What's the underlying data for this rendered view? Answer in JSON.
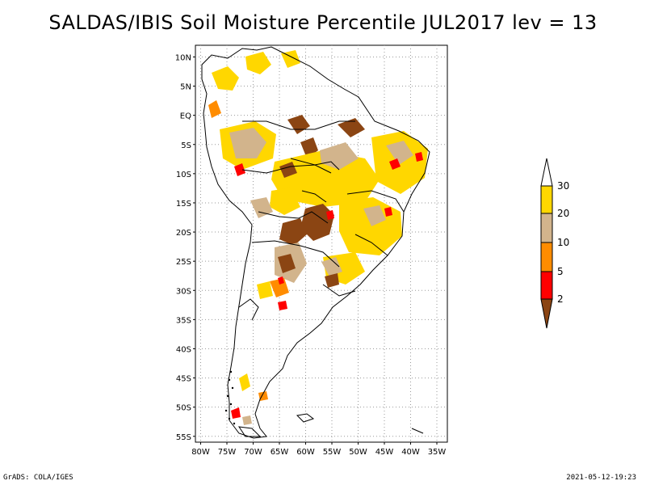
{
  "title": "SALDAS/IBIS Soil Moisture Percentile JUL2017 lev = 13",
  "footer": {
    "left": "GrADS: COLA/IGES",
    "right": "2021-05-12-19:23"
  },
  "map": {
    "region": "South America",
    "grid": "dotted",
    "lat_labels": [
      "10N",
      "5N",
      "EQ",
      "5S",
      "10S",
      "15S",
      "20S",
      "25S",
      "30S",
      "35S",
      "40S",
      "45S",
      "50S",
      "55S"
    ],
    "lat_values": [
      10,
      5,
      0,
      -5,
      -10,
      -15,
      -20,
      -25,
      -30,
      -35,
      -40,
      -45,
      -50,
      -55
    ],
    "lon_labels": [
      "80W",
      "75W",
      "70W",
      "65W",
      "60W",
      "55W",
      "50W",
      "45W",
      "40W",
      "35W"
    ],
    "lon_values": [
      -80,
      -75,
      -70,
      -65,
      -60,
      -55,
      -50,
      -45,
      -40,
      -35
    ],
    "lon_range": [
      -81,
      -33
    ],
    "lat_range": [
      -56,
      12
    ]
  },
  "legend": {
    "levels": [
      "2",
      "5",
      "10",
      "20",
      "30"
    ],
    "colors": {
      "below_2": "#8B4513",
      "2_5": "#FF0000",
      "5_10": "#FF8C00",
      "10_20": "#D2B48C",
      "20_30": "#FFD700",
      "above_30": "#FFFFFF"
    }
  },
  "colors": {
    "coast": "#000000",
    "grid": "#9a9a9a",
    "brown": "#8B4513",
    "red": "#FF0000",
    "orange": "#FF8C00",
    "tan": "#D2B48C",
    "yellow": "#FFD700"
  }
}
